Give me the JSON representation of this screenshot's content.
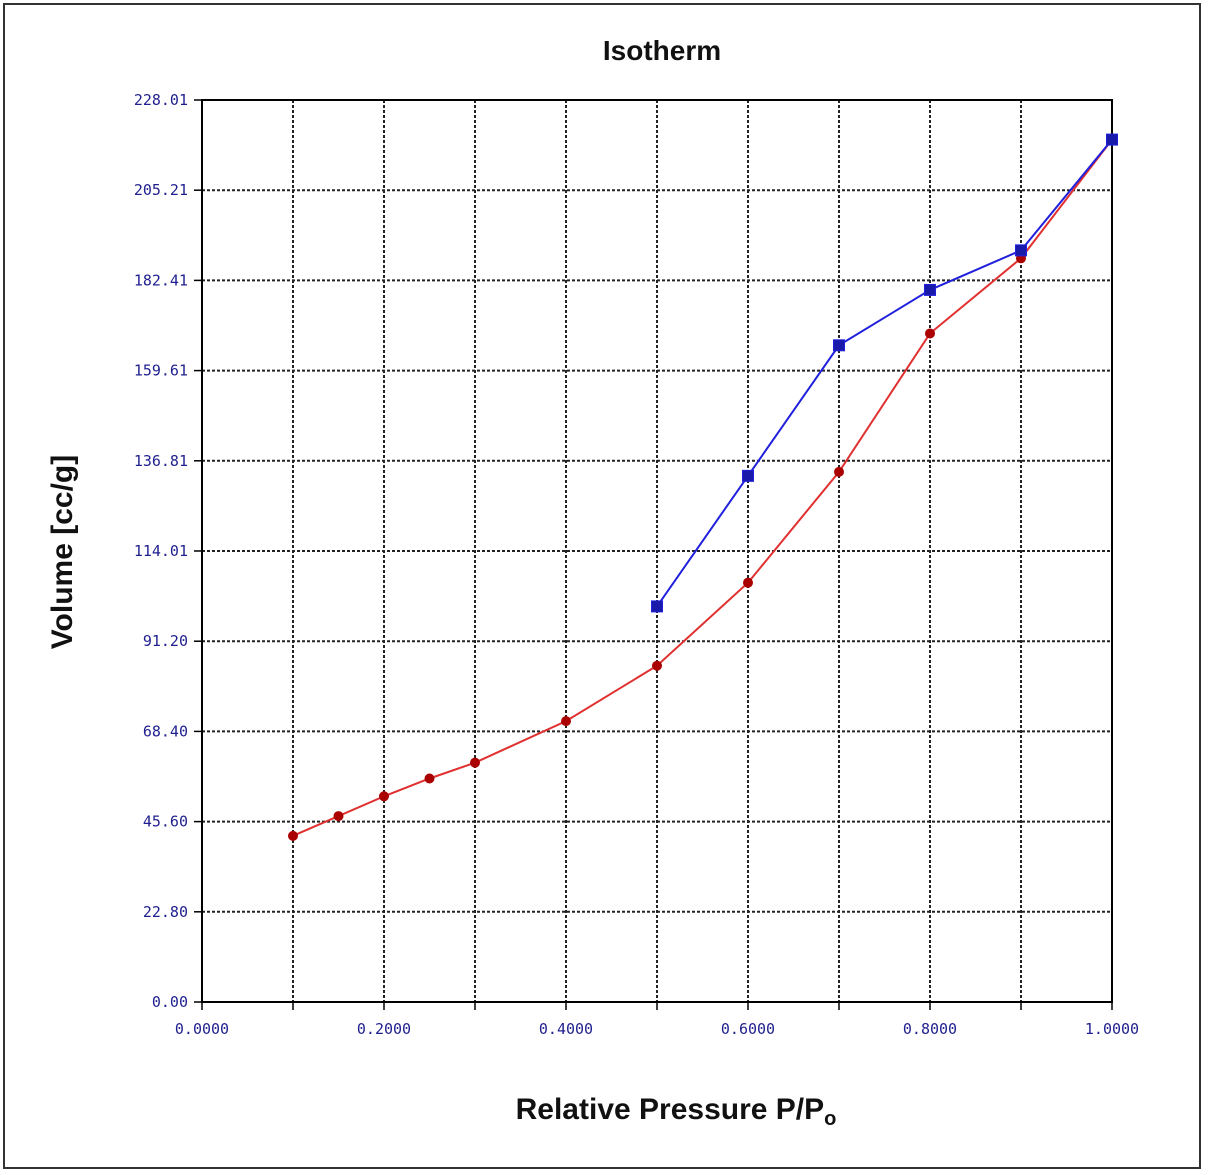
{
  "chart_data": {
    "type": "line",
    "title": "Isotherm",
    "xlabel": "Relative Pressure P/P",
    "xlabel_subscript": "o",
    "ylabel": "Volume [cc/g]",
    "xlim": [
      0.0,
      1.0
    ],
    "ylim": [
      0.0,
      228.01
    ],
    "x_ticks": [
      0.0,
      0.1,
      0.2,
      0.3,
      0.4,
      0.5,
      0.6,
      0.7,
      0.8,
      0.9,
      1.0
    ],
    "x_tick_labels": [
      "0.0000",
      "",
      "0.2000",
      "",
      "0.4000",
      "",
      "0.6000",
      "",
      "0.8000",
      "",
      "1.0000"
    ],
    "y_ticks": [
      0.0,
      22.8,
      45.6,
      68.4,
      91.2,
      114.01,
      136.81,
      159.61,
      182.41,
      205.21,
      228.01
    ],
    "y_tick_labels": [
      "0.00",
      "22.80",
      "45.60",
      "68.40",
      "91.20",
      "114.01",
      "136.81",
      "159.61",
      "182.41",
      "205.21",
      "228.01"
    ],
    "grid": true,
    "series": [
      {
        "color": "#e03030",
        "marker_color": "#aa0000",
        "marker": "circle",
        "x": [
          0.1,
          0.15,
          0.2,
          0.25,
          0.3,
          0.4,
          0.5,
          0.6,
          0.7,
          0.8,
          0.9,
          1.0
        ],
        "y": [
          42.0,
          47.0,
          52.0,
          56.5,
          60.5,
          71.0,
          85.0,
          106.0,
          134.0,
          169.0,
          188.0,
          218.0
        ]
      },
      {
        "color": "#2020dd",
        "marker_color": "#1a1aaa",
        "marker": "square",
        "x": [
          0.5,
          0.6,
          0.7,
          0.8,
          0.9,
          1.0
        ],
        "y": [
          100.0,
          133.0,
          166.0,
          180.0,
          190.0,
          218.0
        ]
      }
    ]
  }
}
